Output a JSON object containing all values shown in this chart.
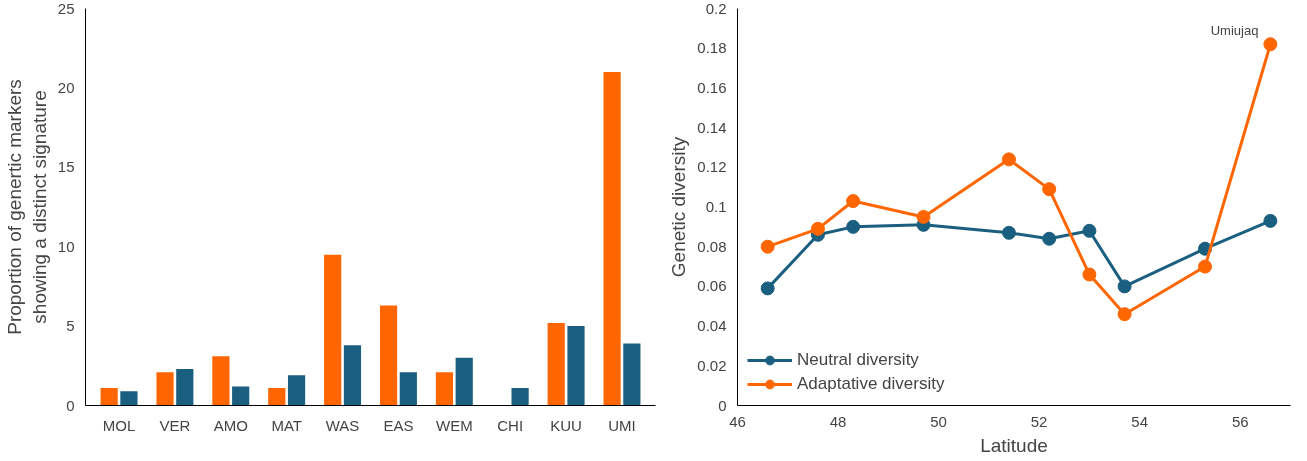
{
  "chart_data": [
    {
      "type": "bar",
      "ylabel": "Proportion of genertic markers\nshowing a distinct signature",
      "categories": [
        "MOL",
        "VER",
        "AMO",
        "MAT",
        "WAS",
        "EAS",
        "WEM",
        "CHI",
        "KUU",
        "UMI"
      ],
      "ylim": [
        0,
        25
      ],
      "yticks": [
        0,
        5,
        10,
        15,
        20,
        25
      ],
      "grid": false,
      "legend": false,
      "series": [
        {
          "color": "#ff6600",
          "values": [
            1.1,
            2.1,
            3.1,
            1.1,
            9.5,
            6.3,
            2.1,
            null,
            5.2,
            21.0
          ]
        },
        {
          "color": "#1a5f80",
          "values": [
            0.9,
            2.3,
            1.2,
            1.9,
            3.8,
            2.1,
            3.0,
            1.1,
            5.0,
            3.9
          ]
        }
      ]
    },
    {
      "type": "line",
      "xlabel": "Latitude",
      "ylabel": "Genetic diversity",
      "x": [
        46.6,
        47.6,
        48.3,
        49.7,
        51.4,
        52.2,
        53.0,
        53.7,
        55.3,
        56.6
      ],
      "xlim": [
        46,
        57
      ],
      "xticks": [
        46,
        48,
        50,
        52,
        54,
        56
      ],
      "ylim": [
        0,
        0.2
      ],
      "yticks": [
        0,
        0.02,
        0.04,
        0.06,
        0.08,
        0.1,
        0.12,
        0.14,
        0.16,
        0.18,
        0.2
      ],
      "grid": false,
      "legend": "bottom left",
      "marker": "circle",
      "line_style": "solid",
      "annotations": [
        {
          "text": "Umiujaq",
          "x": 56.6,
          "y": 0.182
        }
      ],
      "series": [
        {
          "name": "Neutral diversity",
          "color": "#1a5f80",
          "values": [
            0.059,
            0.086,
            0.09,
            0.091,
            0.087,
            0.084,
            0.088,
            0.06,
            0.079,
            0.093
          ]
        },
        {
          "name": "Adaptative diversity",
          "color": "#ff6600",
          "values": [
            0.08,
            0.089,
            0.103,
            0.095,
            0.124,
            0.109,
            0.066,
            0.046,
            0.07,
            0.182
          ]
        }
      ]
    }
  ]
}
